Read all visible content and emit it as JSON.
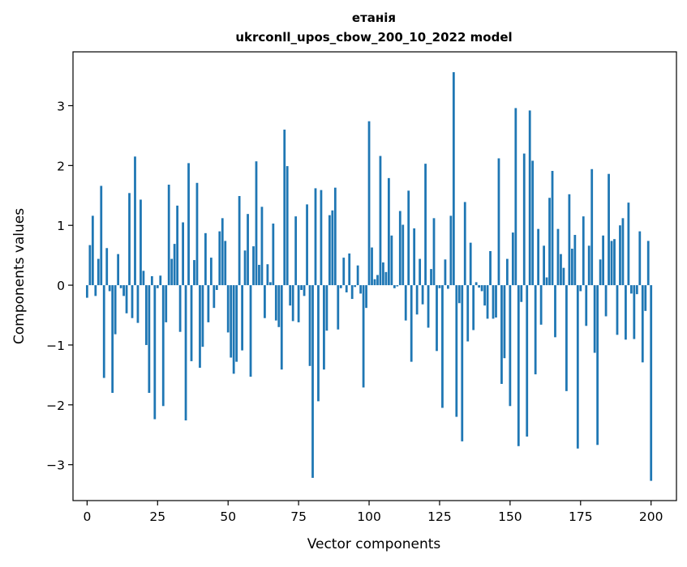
{
  "chart_data": {
    "type": "bar",
    "title": "етанія",
    "subtitle": "ukrconll_upos_cbow_200_10_2022 model",
    "xlabel": "Vector components",
    "ylabel": "Components values",
    "xlim": [
      -5,
      209
    ],
    "ylim": [
      -3.6,
      3.9
    ],
    "xticks": [
      0,
      25,
      50,
      75,
      100,
      125,
      150,
      175,
      200
    ],
    "yticks": [
      -3,
      -2,
      -1,
      0,
      1,
      2,
      3
    ],
    "ytick_labels": [
      "−3",
      "−2",
      "−1",
      "0",
      "1",
      "2",
      "3"
    ],
    "xtick_labels": [
      "0",
      "25",
      "50",
      "75",
      "100",
      "125",
      "150",
      "175",
      "200"
    ],
    "grid": false,
    "legend": "none",
    "bar_color": "#1f77b4",
    "series": [
      {
        "values": [
          -0.21,
          0.67,
          1.16,
          -0.18,
          0.44,
          1.66,
          -1.55,
          0.62,
          -0.1,
          -1.8,
          -0.82,
          0.52,
          -0.05,
          -0.18,
          -0.47,
          1.54,
          -0.55,
          2.15,
          -0.63,
          1.43,
          0.24,
          -1.0,
          -1.8,
          0.15,
          -2.24,
          -0.05,
          0.16,
          -2.02,
          -0.62,
          1.68,
          0.44,
          0.69,
          1.33,
          -0.78,
          1.05,
          -2.26,
          2.04,
          -1.27,
          0.42,
          1.71,
          -1.38,
          -1.03,
          0.87,
          -0.62,
          0.46,
          -0.38,
          -0.08,
          0.9,
          1.12,
          0.74,
          -0.79,
          -1.21,
          -1.48,
          -1.28,
          1.49,
          -1.09,
          0.58,
          1.19,
          -1.53,
          0.65,
          2.07,
          0.34,
          1.31,
          -0.55,
          0.35,
          0.05,
          1.03,
          -0.59,
          -0.7,
          -1.41,
          2.6,
          1.99,
          -0.34,
          -0.6,
          1.15,
          -0.62,
          -0.08,
          -0.18,
          1.35,
          -1.35,
          -3.22,
          1.62,
          -1.94,
          1.59,
          -1.41,
          -0.76,
          1.17,
          1.25,
          1.63,
          -0.74,
          -0.05,
          0.46,
          -0.12,
          0.53,
          -0.23,
          -0.03,
          0.33,
          -0.14,
          -1.71,
          -0.38,
          2.74,
          0.63,
          0.1,
          0.17,
          2.16,
          0.38,
          0.22,
          1.79,
          0.83,
          -0.05,
          -0.02,
          1.24,
          1.01,
          -0.59,
          1.58,
          -1.28,
          0.95,
          -0.49,
          0.44,
          -0.32,
          2.03,
          -0.71,
          0.27,
          1.12,
          -1.1,
          -0.05,
          -2.05,
          0.43,
          -0.06,
          1.16,
          3.56,
          -2.2,
          -0.3,
          -2.61,
          1.39,
          -0.94,
          0.71,
          -0.75,
          0.05,
          -0.04,
          -0.1,
          -0.34,
          -0.56,
          0.57,
          -0.56,
          -0.54,
          2.12,
          -1.65,
          -1.22,
          0.44,
          -2.02,
          0.88,
          2.96,
          -2.69,
          -0.28,
          2.2,
          -2.53,
          2.92,
          2.08,
          -1.49,
          0.94,
          -0.66,
          0.66,
          0.13,
          1.46,
          1.91,
          -0.87,
          0.94,
          0.52,
          0.29,
          -1.77,
          1.52,
          0.61,
          0.84,
          -2.73,
          -0.1,
          1.15,
          -0.68,
          0.66,
          1.94,
          -1.13,
          -2.67,
          0.43,
          0.83,
          -0.52,
          1.86,
          0.74,
          0.77,
          -0.83,
          1.0,
          1.12,
          -0.91,
          1.38,
          -0.14,
          -0.9,
          -0.15,
          0.9,
          -1.29,
          -0.43,
          0.74,
          -3.27
        ]
      }
    ]
  }
}
